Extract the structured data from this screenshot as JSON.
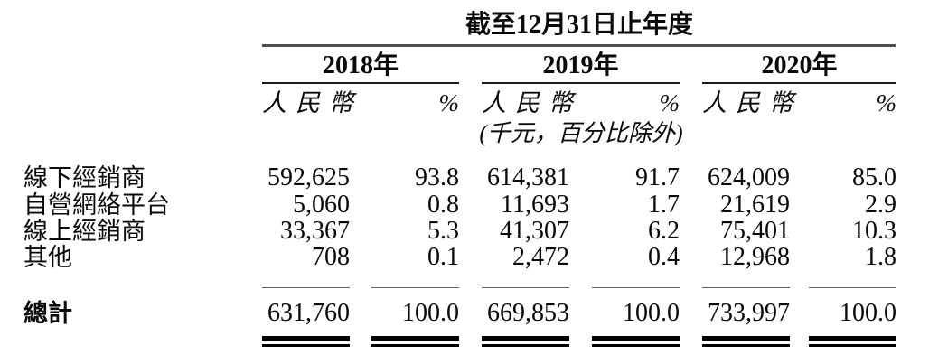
{
  "table": {
    "title": "截至12月31日止年度",
    "unit_note": "(千元，百分比除外)",
    "year_groups": [
      {
        "label": "2018年",
        "col_headers": [
          "人民幣",
          "%"
        ]
      },
      {
        "label": "2019年",
        "col_headers": [
          "人民幣",
          "%"
        ]
      },
      {
        "label": "2020年",
        "col_headers": [
          "人民幣",
          "%"
        ]
      }
    ],
    "rows": [
      {
        "label": "線下經銷商",
        "values": [
          "592,625",
          "93.8",
          "614,381",
          "91.7",
          "624,009",
          "85.0"
        ]
      },
      {
        "label": "自營網絡平台",
        "values": [
          "5,060",
          "0.8",
          "11,693",
          "1.7",
          "21,619",
          "2.9"
        ]
      },
      {
        "label": "線上經銷商",
        "values": [
          "33,367",
          "5.3",
          "41,307",
          "6.2",
          "75,401",
          "10.3"
        ]
      },
      {
        "label": "其他",
        "values": [
          "708",
          "0.1",
          "2,472",
          "0.4",
          "12,968",
          "1.8"
        ]
      }
    ],
    "total_row": {
      "label": "總計",
      "values": [
        "631,760",
        "100.0",
        "669,853",
        "100.0",
        "733,997",
        "100.0"
      ]
    }
  }
}
